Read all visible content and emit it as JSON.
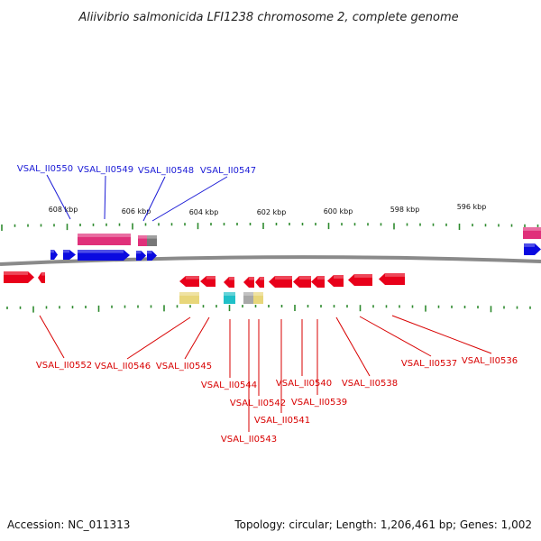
{
  "title": "Aliivibrio salmonicida LFI1238 chromosome 2, complete genome",
  "footer": {
    "accession": "Accession: NC_011313",
    "summary": "Topology: circular; Length: 1,206,461 bp; Genes: 1,002"
  },
  "colors": {
    "forward_label": "#1a1ad6",
    "reverse_label": "#d80000",
    "forward_gene": "#0a0ae0",
    "reverse_gene": "#e8001a",
    "cds_pink": "#e0307a",
    "cds_yellow": "#e8d67a",
    "cds_cyan": "#20c0c8",
    "cds_gray": "#a8a8a8",
    "backbone": "#8a8a8a",
    "tick": "#2e8a2e"
  },
  "scale_ticks": [
    {
      "label": "608 kbp"
    },
    {
      "label": "606 kbp"
    },
    {
      "label": "604 kbp"
    },
    {
      "label": "602 kbp"
    },
    {
      "label": "600 kbp"
    },
    {
      "label": "598 kbp"
    },
    {
      "label": "596 kbp"
    }
  ],
  "forward_labels": [
    "VSAL_II0550",
    "VSAL_II0549",
    "VSAL_II0548",
    "VSAL_II0547"
  ],
  "reverse_labels": [
    "VSAL_II0552",
    "VSAL_II0546",
    "VSAL_II0545",
    "VSAL_II0544",
    "VSAL_II0542",
    "VSAL_II0543",
    "VSAL_II0541",
    "VSAL_II0540",
    "VSAL_II0539",
    "VSAL_II0538",
    "VSAL_II0537",
    "VSAL_II0536"
  ]
}
